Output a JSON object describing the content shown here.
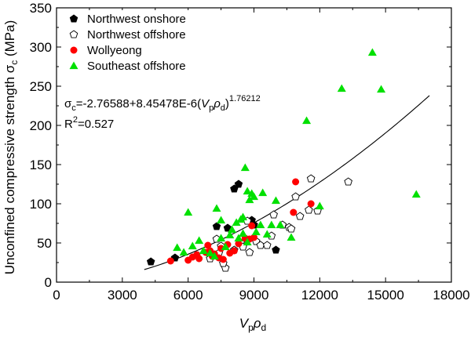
{
  "chart_data": {
    "type": "scatter",
    "xlabel": "VpρD",
    "xlabel_parts": {
      "v": "V",
      "v_sub": "p",
      "rho": "ρ",
      "rho_sub": "d"
    },
    "ylabel": "Unconfined compressive strength σc (MPa)",
    "ylabel_parts": {
      "main": "Unconfined compressive strength σ",
      "sub": "c",
      "unit": " (MPa)"
    },
    "xlim": [
      0,
      18000
    ],
    "ylim": [
      0,
      350
    ],
    "x_ticks": [
      0,
      3000,
      6000,
      9000,
      12000,
      15000,
      18000
    ],
    "x_tick_labels": [
      "0",
      "3000",
      "6000",
      "9000",
      "12000",
      "15000",
      "18000"
    ],
    "y_ticks": [
      0,
      50,
      100,
      150,
      200,
      250,
      300,
      350
    ],
    "y_tick_labels": [
      "0",
      "50",
      "100",
      "150",
      "200",
      "250",
      "300",
      "350"
    ],
    "grid": false,
    "legend_position": "top-left",
    "series": [
      {
        "name": "Northwest onshore",
        "marker": "pentagon-filled",
        "color": "#000000",
        "points": [
          [
            4300,
            26
          ],
          [
            5400,
            31
          ],
          [
            7300,
            71
          ],
          [
            7800,
            69
          ],
          [
            8100,
            119
          ],
          [
            8300,
            125
          ],
          [
            8900,
            79
          ],
          [
            9000,
            73
          ],
          [
            10000,
            41
          ]
        ]
      },
      {
        "name": "Northwest offshore",
        "marker": "pentagon-open",
        "color": "#000000",
        "points": [
          [
            7300,
            55
          ],
          [
            7400,
            37
          ],
          [
            7500,
            46
          ],
          [
            7700,
            18
          ],
          [
            8100,
            41
          ],
          [
            8400,
            50
          ],
          [
            8500,
            45
          ],
          [
            8800,
            38
          ],
          [
            9100,
            52
          ],
          [
            9300,
            47
          ],
          [
            9600,
            47
          ],
          [
            9800,
            59
          ],
          [
            9900,
            86
          ],
          [
            10300,
            73
          ],
          [
            10600,
            70
          ],
          [
            10700,
            68
          ],
          [
            10900,
            109
          ],
          [
            11100,
            84
          ],
          [
            11500,
            92
          ],
          [
            11600,
            132
          ],
          [
            11900,
            91
          ],
          [
            13300,
            128
          ],
          [
            7000,
            30
          ],
          [
            7600,
            24
          ],
          [
            8700,
            78
          ]
        ]
      },
      {
        "name": "Wollyeong",
        "marker": "circle-filled",
        "color": "#ff0000",
        "points": [
          [
            5200,
            27
          ],
          [
            6000,
            28
          ],
          [
            6200,
            32
          ],
          [
            6400,
            35
          ],
          [
            6500,
            30
          ],
          [
            6800,
            38
          ],
          [
            7000,
            40
          ],
          [
            7100,
            33
          ],
          [
            7200,
            36
          ],
          [
            7400,
            31
          ],
          [
            7600,
            29
          ],
          [
            7800,
            48
          ],
          [
            7900,
            37
          ],
          [
            8100,
            40
          ],
          [
            8300,
            49
          ],
          [
            8600,
            56
          ],
          [
            8800,
            55
          ],
          [
            9000,
            57
          ],
          [
            8900,
            72
          ],
          [
            10800,
            89
          ],
          [
            10900,
            128
          ],
          [
            11600,
            100
          ],
          [
            6900,
            47
          ],
          [
            7500,
            43
          ]
        ]
      },
      {
        "name": "Southeast offshore",
        "marker": "triangle-filled",
        "color": "#00e000",
        "points": [
          [
            5500,
            44
          ],
          [
            5800,
            38
          ],
          [
            6000,
            89
          ],
          [
            6200,
            46
          ],
          [
            6500,
            53
          ],
          [
            6700,
            40
          ],
          [
            7000,
            37
          ],
          [
            7200,
            33
          ],
          [
            7300,
            94
          ],
          [
            7500,
            56
          ],
          [
            7500,
            79
          ],
          [
            7700,
            45
          ],
          [
            7900,
            60
          ],
          [
            8000,
            67
          ],
          [
            8200,
            76
          ],
          [
            8400,
            80
          ],
          [
            8500,
            83
          ],
          [
            8600,
            146
          ],
          [
            8700,
            116
          ],
          [
            8800,
            105
          ],
          [
            8900,
            113
          ],
          [
            9000,
            109
          ],
          [
            9100,
            64
          ],
          [
            9300,
            73
          ],
          [
            9400,
            114
          ],
          [
            9600,
            61
          ],
          [
            9800,
            73
          ],
          [
            10000,
            104
          ],
          [
            10200,
            73
          ],
          [
            10700,
            57
          ],
          [
            12000,
            97
          ],
          [
            11400,
            206
          ],
          [
            13000,
            247
          ],
          [
            14400,
            293
          ],
          [
            14800,
            246
          ],
          [
            16400,
            112
          ],
          [
            8300,
            56
          ],
          [
            8500,
            62
          ],
          [
            8700,
            51
          ]
        ]
      }
    ],
    "fit": {
      "type": "power",
      "a": -2.76588,
      "b": 8.45478e-06,
      "c": 1.76212,
      "x_range": [
        4000,
        17000
      ],
      "color": "#000000"
    },
    "annotations": {
      "equation": {
        "sigma": "σ",
        "sigma_sub": "c",
        "prefix": "=-2.76588+8.45478E-6(",
        "v": "V",
        "v_sub": "p",
        "rho": "ρ",
        "rho_sub": "d",
        "suffix": ")",
        "exponent": "1.76212"
      },
      "r2": {
        "label": "R",
        "sup": "2",
        "value": "=0.527"
      }
    }
  }
}
